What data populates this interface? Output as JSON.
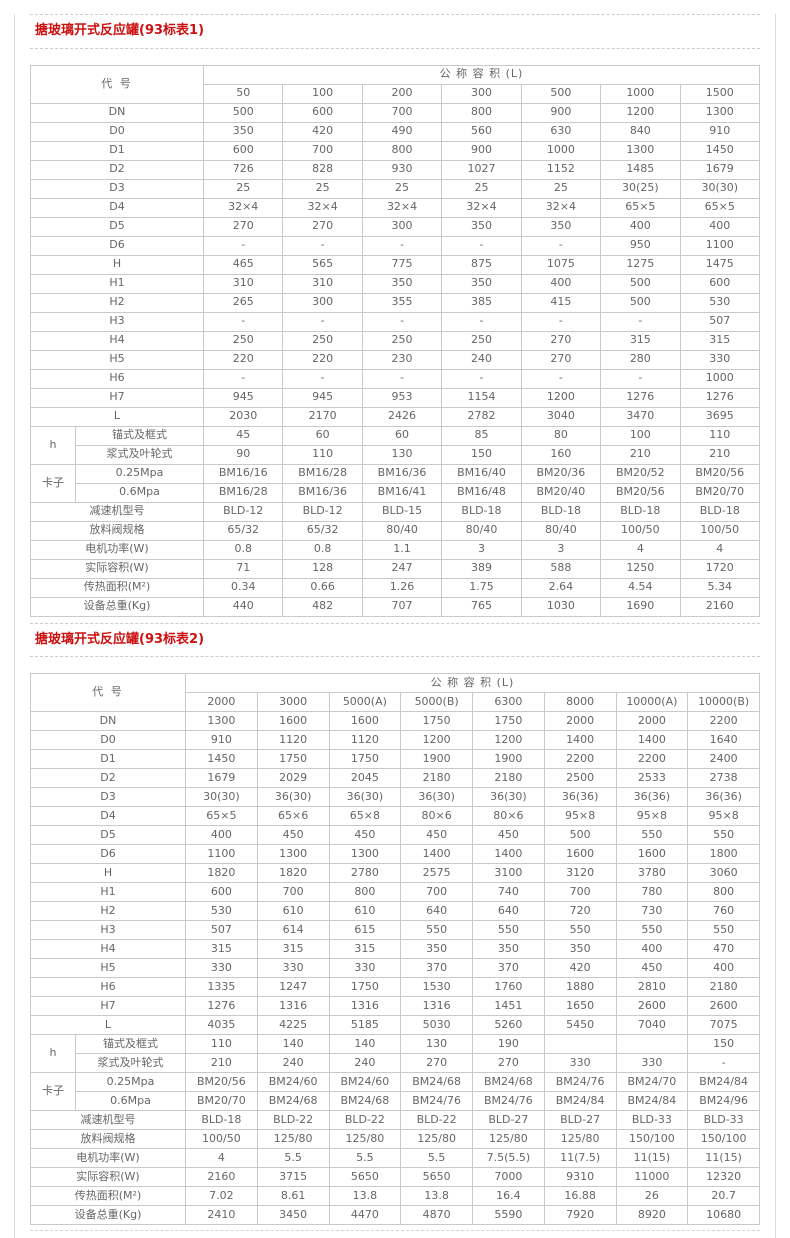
{
  "colors": {
    "title_red": "#cc1111",
    "table_border": "#c9c9c9",
    "table_text": "#666666",
    "divider": "#cccccc"
  },
  "sections": [
    {
      "title": "搪玻璃开式反应罐(93标表1)"
    },
    {
      "title": "搪玻璃开式反应罐(93标表2)"
    }
  ],
  "table1": {
    "corner_label": "代 号",
    "group_header": "公 称 容 积 (L)",
    "col_headers": [
      "50",
      "100",
      "200",
      "300",
      "500",
      "1000",
      "1500"
    ],
    "rows": [
      {
        "label": "DN",
        "values": [
          "500",
          "600",
          "700",
          "800",
          "900",
          "1200",
          "1300"
        ]
      },
      {
        "label": "D0",
        "values": [
          "350",
          "420",
          "490",
          "560",
          "630",
          "840",
          "910"
        ]
      },
      {
        "label": "D1",
        "values": [
          "600",
          "700",
          "800",
          "900",
          "1000",
          "1300",
          "1450"
        ]
      },
      {
        "label": "D2",
        "values": [
          "726",
          "828",
          "930",
          "1027",
          "1152",
          "1485",
          "1679"
        ]
      },
      {
        "label": "D3",
        "values": [
          "25",
          "25",
          "25",
          "25",
          "25",
          "30(25)",
          "30(30)"
        ]
      },
      {
        "label": "D4",
        "values": [
          "32×4",
          "32×4",
          "32×4",
          "32×4",
          "32×4",
          "65×5",
          "65×5"
        ]
      },
      {
        "label": "D5",
        "values": [
          "270",
          "270",
          "300",
          "350",
          "350",
          "400",
          "400"
        ]
      },
      {
        "label": "D6",
        "values": [
          "-",
          "-",
          "-",
          "-",
          "-",
          "950",
          "1100"
        ]
      },
      {
        "label": "H",
        "values": [
          "465",
          "565",
          "775",
          "875",
          "1075",
          "1275",
          "1475"
        ]
      },
      {
        "label": "H1",
        "values": [
          "310",
          "310",
          "350",
          "350",
          "400",
          "500",
          "600"
        ]
      },
      {
        "label": "H2",
        "values": [
          "265",
          "300",
          "355",
          "385",
          "415",
          "500",
          "530"
        ]
      },
      {
        "label": "H3",
        "values": [
          "-",
          "-",
          "-",
          "-",
          "-",
          "-",
          "507"
        ]
      },
      {
        "label": "H4",
        "values": [
          "250",
          "250",
          "250",
          "250",
          "270",
          "315",
          "315"
        ]
      },
      {
        "label": "H5",
        "values": [
          "220",
          "220",
          "230",
          "240",
          "270",
          "280",
          "330"
        ]
      },
      {
        "label": "H6",
        "values": [
          "-",
          "-",
          "-",
          "-",
          "-",
          "-",
          "1000"
        ]
      },
      {
        "label": "H7",
        "values": [
          "945",
          "945",
          "953",
          "1154",
          "1200",
          "1276",
          "1276"
        ]
      },
      {
        "label": "L",
        "values": [
          "2030",
          "2170",
          "2426",
          "2782",
          "3040",
          "3470",
          "3695"
        ]
      },
      {
        "group": "h",
        "sublabel": "锚式及框式",
        "values": [
          "45",
          "60",
          "60",
          "85",
          "80",
          "100",
          "110"
        ]
      },
      {
        "group": "",
        "sublabel": "浆式及叶轮式",
        "values": [
          "90",
          "110",
          "130",
          "150",
          "160",
          "210",
          "210"
        ]
      },
      {
        "group": "卡子",
        "sublabel": "0.25Mpa",
        "values": [
          "BM16/16",
          "BM16/28",
          "BM16/36",
          "BM16/40",
          "BM20/36",
          "BM20/52",
          "BM20/56"
        ]
      },
      {
        "group": "",
        "sublabel": "0.6Mpa",
        "values": [
          "BM16/28",
          "BM16/36",
          "BM16/41",
          "BM16/48",
          "BM20/40",
          "BM20/56",
          "BM20/70"
        ]
      },
      {
        "label": "减速机型号",
        "values": [
          "BLD-12",
          "BLD-12",
          "BLD-15",
          "BLD-18",
          "BLD-18",
          "BLD-18",
          "BLD-18"
        ]
      },
      {
        "label": "放料阀规格",
        "values": [
          "65/32",
          "65/32",
          "80/40",
          "80/40",
          "80/40",
          "100/50",
          "100/50"
        ]
      },
      {
        "label": "电机功率(W)",
        "values": [
          "0.8",
          "0.8",
          "1.1",
          "3",
          "3",
          "4",
          "4"
        ]
      },
      {
        "label": "实际容积(W)",
        "values": [
          "71",
          "128",
          "247",
          "389",
          "588",
          "1250",
          "1720"
        ]
      },
      {
        "label": "传热面积(M²)",
        "values": [
          "0.34",
          "0.66",
          "1.26",
          "1.75",
          "2.64",
          "4.54",
          "5.34"
        ]
      },
      {
        "label": "设备总重(Kg)",
        "values": [
          "440",
          "482",
          "707",
          "765",
          "1030",
          "1690",
          "2160"
        ]
      }
    ]
  },
  "table2": {
    "corner_label": "代 号",
    "group_header": "公 称 容 积 (L)",
    "col_headers": [
      "2000",
      "3000",
      "5000(A)",
      "5000(B)",
      "6300",
      "8000",
      "10000(A)",
      "10000(B)"
    ],
    "rows": [
      {
        "label": "DN",
        "values": [
          "1300",
          "1600",
          "1600",
          "1750",
          "1750",
          "2000",
          "2000",
          "2200"
        ]
      },
      {
        "label": "D0",
        "values": [
          "910",
          "1120",
          "1120",
          "1200",
          "1200",
          "1400",
          "1400",
          "1640"
        ]
      },
      {
        "label": "D1",
        "values": [
          "1450",
          "1750",
          "1750",
          "1900",
          "1900",
          "2200",
          "2200",
          "2400"
        ]
      },
      {
        "label": "D2",
        "values": [
          "1679",
          "2029",
          "2045",
          "2180",
          "2180",
          "2500",
          "2533",
          "2738"
        ]
      },
      {
        "label": "D3",
        "values": [
          "30(30)",
          "36(30)",
          "36(30)",
          "36(30)",
          "36(30)",
          "36(36)",
          "36(36)",
          "36(36)"
        ]
      },
      {
        "label": "D4",
        "values": [
          "65×5",
          "65×6",
          "65×8",
          "80×6",
          "80×6",
          "95×8",
          "95×8",
          "95×8"
        ]
      },
      {
        "label": "D5",
        "values": [
          "400",
          "450",
          "450",
          "450",
          "450",
          "500",
          "550",
          "550"
        ]
      },
      {
        "label": "D6",
        "values": [
          "1100",
          "1300",
          "1300",
          "1400",
          "1400",
          "1600",
          "1600",
          "1800"
        ]
      },
      {
        "label": "H",
        "values": [
          "1820",
          "1820",
          "2780",
          "2575",
          "3100",
          "3120",
          "3780",
          "3060"
        ]
      },
      {
        "label": "H1",
        "values": [
          "600",
          "700",
          "800",
          "700",
          "740",
          "700",
          "780",
          "800"
        ]
      },
      {
        "label": "H2",
        "values": [
          "530",
          "610",
          "610",
          "640",
          "640",
          "720",
          "730",
          "760"
        ]
      },
      {
        "label": "H3",
        "values": [
          "507",
          "614",
          "615",
          "550",
          "550",
          "550",
          "550",
          "550"
        ]
      },
      {
        "label": "H4",
        "values": [
          "315",
          "315",
          "315",
          "350",
          "350",
          "350",
          "400",
          "470"
        ]
      },
      {
        "label": "H5",
        "values": [
          "330",
          "330",
          "330",
          "370",
          "370",
          "420",
          "450",
          "400"
        ]
      },
      {
        "label": "H6",
        "values": [
          "1335",
          "1247",
          "1750",
          "1530",
          "1760",
          "1880",
          "2810",
          "2180"
        ]
      },
      {
        "label": "H7",
        "values": [
          "1276",
          "1316",
          "1316",
          "1316",
          "1451",
          "1650",
          "2600",
          "2600"
        ]
      },
      {
        "label": "L",
        "values": [
          "4035",
          "4225",
          "5185",
          "5030",
          "5260",
          "5450",
          "7040",
          "7075"
        ]
      },
      {
        "group": "h",
        "sublabel": "锚式及框式",
        "values": [
          "110",
          "140",
          "140",
          "130",
          "190",
          "",
          "",
          "150"
        ]
      },
      {
        "group": "",
        "sublabel": "浆式及叶轮式",
        "values": [
          "210",
          "240",
          "240",
          "270",
          "270",
          "330",
          "330",
          "-"
        ]
      },
      {
        "group": "卡子",
        "sublabel": "0.25Mpa",
        "values": [
          "BM20/56",
          "BM24/60",
          "BM24/60",
          "BM24/68",
          "BM24/68",
          "BM24/76",
          "BM24/70",
          "BM24/84"
        ]
      },
      {
        "group": "",
        "sublabel": "0.6Mpa",
        "values": [
          "BM20/70",
          "BM24/68",
          "BM24/68",
          "BM24/76",
          "BM24/76",
          "BM24/84",
          "BM24/84",
          "BM24/96"
        ]
      },
      {
        "label": "减速机型号",
        "values": [
          "BLD-18",
          "BLD-22",
          "BLD-22",
          "BLD-22",
          "BLD-27",
          "BLD-27",
          "BLD-33",
          "BLD-33"
        ]
      },
      {
        "label": "放料阀规格",
        "values": [
          "100/50",
          "125/80",
          "125/80",
          "125/80",
          "125/80",
          "125/80",
          "150/100",
          "150/100"
        ]
      },
      {
        "label": "电机功率(W)",
        "values": [
          "4",
          "5.5",
          "5.5",
          "5.5",
          "7.5(5.5)",
          "11(7.5)",
          "11(15)",
          "11(15)"
        ]
      },
      {
        "label": "实际容积(W)",
        "values": [
          "2160",
          "3715",
          "5650",
          "5650",
          "7000",
          "9310",
          "11000",
          "12320"
        ]
      },
      {
        "label": "传热面积(M²)",
        "values": [
          "7.02",
          "8.61",
          "13.8",
          "13.8",
          "16.4",
          "16.88",
          "26",
          "20.7"
        ]
      },
      {
        "label": "设备总重(Kg)",
        "values": [
          "2410",
          "3450",
          "4470",
          "4870",
          "5590",
          "7920",
          "8920",
          "10680"
        ]
      }
    ]
  }
}
